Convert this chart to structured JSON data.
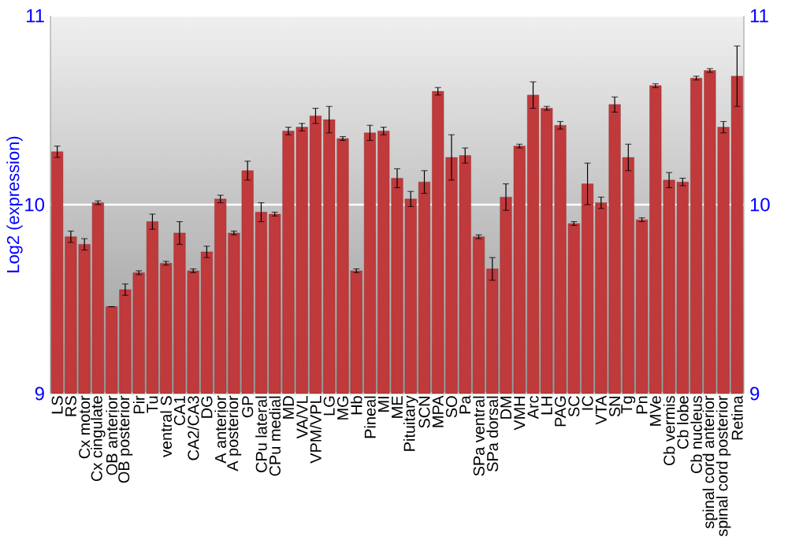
{
  "chart_data": {
    "type": "bar",
    "ylabel": "Log2 (expression)",
    "categories": [
      "LS",
      "RS",
      "Cx motor",
      "Cx cingulate",
      "OB anterior",
      "OB posterior",
      "Pir",
      "Tu",
      "ventral S",
      "CA1",
      "CA2/CA3",
      "DG",
      "A anterior",
      "A posterior",
      "GP",
      "CPu lateral",
      "CPu medial",
      "MD",
      "VA/VL",
      "VPM/VPL",
      "LG",
      "MG",
      "Hb",
      "Pineal",
      "MI",
      "ME",
      "Pituitary",
      "SCN",
      "MPA",
      "SO",
      "Pa",
      "SPa ventral",
      "SPa dorsal",
      "DM",
      "VMH",
      "Arc",
      "LH",
      "PAG",
      "SC",
      "IC",
      "VTA",
      "SN",
      "Tg",
      "Pn",
      "MVe",
      "Cb vermis",
      "Cb lobe",
      "Cb nucleus",
      "spinal cord anterior",
      "spinal cord posterior",
      "Retina"
    ],
    "values": [
      10.28,
      9.83,
      9.79,
      10.01,
      9.46,
      9.55,
      9.64,
      9.91,
      9.69,
      9.85,
      9.65,
      9.75,
      10.03,
      9.85,
      10.18,
      9.96,
      9.95,
      10.39,
      10.41,
      10.47,
      10.45,
      10.35,
      9.65,
      10.38,
      10.39,
      10.14,
      10.03,
      10.12,
      10.6,
      10.25,
      10.26,
      9.83,
      9.66,
      10.04,
      10.31,
      10.58,
      10.51,
      10.42,
      9.9,
      10.11,
      10.01,
      10.53,
      10.25,
      9.92,
      10.63,
      10.13,
      10.12,
      10.67,
      10.71,
      10.41,
      10.68
    ],
    "errors": [
      0.03,
      0.03,
      0.03,
      0.01,
      0.0,
      0.03,
      0.01,
      0.04,
      0.01,
      0.06,
      0.01,
      0.03,
      0.02,
      0.01,
      0.05,
      0.05,
      0.01,
      0.02,
      0.02,
      0.04,
      0.07,
      0.01,
      0.01,
      0.04,
      0.02,
      0.05,
      0.04,
      0.06,
      0.02,
      0.12,
      0.04,
      0.01,
      0.06,
      0.07,
      0.01,
      0.07,
      0.01,
      0.02,
      0.01,
      0.11,
      0.03,
      0.04,
      0.07,
      0.01,
      0.01,
      0.04,
      0.02,
      0.01,
      0.01,
      0.03,
      0.16
    ],
    "color": "#c0393b",
    "ylim": [
      9,
      11
    ],
    "yticks": [
      9,
      10,
      11
    ],
    "y2lim": [
      9,
      11
    ],
    "y2ticks": [
      9,
      10,
      11
    ],
    "grid": "y"
  }
}
